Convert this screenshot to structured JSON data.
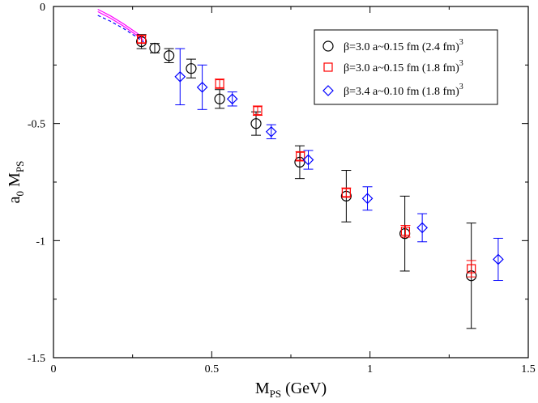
{
  "chart_data": {
    "type": "scatter",
    "xlabel": {
      "main": "M",
      "sub": "PS",
      "suffix": " (GeV)"
    },
    "ylabel": {
      "pre": "a",
      "presub": "0",
      "main": " M",
      "sub": "PS"
    },
    "xlim": [
      0,
      1.5
    ],
    "ylim": [
      -1.5,
      0
    ],
    "xticks": [
      {
        "value": 0,
        "label": "0"
      },
      {
        "value": 0.5,
        "label": "0.5"
      },
      {
        "value": 1,
        "label": "1"
      },
      {
        "value": 1.5,
        "label": "1.5"
      }
    ],
    "yticks": [
      {
        "value": 0,
        "label": "0"
      },
      {
        "value": -0.5,
        "label": "-0.5"
      },
      {
        "value": -1,
        "label": "-1"
      },
      {
        "value": -1.5,
        "label": "-1.5"
      }
    ],
    "series": [
      {
        "name": "β=3.0 a~0.15 fm (2.4 fm)",
        "legend_sup": "3",
        "marker": "circle",
        "color": "#000000",
        "points": [
          {
            "x": 0.278,
            "y": -0.15,
            "err": 0.03
          },
          {
            "x": 0.32,
            "y": -0.178,
            "err": 0.02
          },
          {
            "x": 0.365,
            "y": -0.21,
            "err": 0.03
          },
          {
            "x": 0.435,
            "y": -0.265,
            "err": 0.04
          },
          {
            "x": 0.525,
            "y": -0.395,
            "err": 0.04
          },
          {
            "x": 0.64,
            "y": -0.5,
            "err": 0.05
          },
          {
            "x": 0.778,
            "y": -0.665,
            "err": 0.07
          },
          {
            "x": 0.925,
            "y": -0.81,
            "err": 0.11
          },
          {
            "x": 1.11,
            "y": -0.97,
            "err": 0.16
          },
          {
            "x": 1.32,
            "y": -1.15,
            "err": 0.225
          }
        ]
      },
      {
        "name": "β=3.0 a~0.15 fm (1.8 fm)",
        "legend_sup": "3",
        "marker": "square",
        "color": "#ff0000",
        "points": [
          {
            "x": 0.278,
            "y": -0.14,
            "err": 0.015
          },
          {
            "x": 0.525,
            "y": -0.33,
            "err": 0.02
          },
          {
            "x": 0.645,
            "y": -0.445,
            "err": 0.02
          },
          {
            "x": 0.78,
            "y": -0.64,
            "err": 0.02
          },
          {
            "x": 0.925,
            "y": -0.795,
            "err": 0.02
          },
          {
            "x": 1.112,
            "y": -0.96,
            "err": 0.025
          },
          {
            "x": 1.32,
            "y": -1.12,
            "err": 0.035
          }
        ]
      },
      {
        "name": "β=3.4 a~0.10 fm (1.8 fm)",
        "legend_sup": "3",
        "marker": "diamond",
        "color": "#0000ff",
        "points": [
          {
            "x": 0.4,
            "y": -0.3,
            "err": 0.12
          },
          {
            "x": 0.47,
            "y": -0.345,
            "err": 0.095
          },
          {
            "x": 0.565,
            "y": -0.395,
            "err": 0.03
          },
          {
            "x": 0.688,
            "y": -0.535,
            "err": 0.03
          },
          {
            "x": 0.805,
            "y": -0.655,
            "err": 0.04
          },
          {
            "x": 0.992,
            "y": -0.82,
            "err": 0.05
          },
          {
            "x": 1.165,
            "y": -0.945,
            "err": 0.06
          },
          {
            "x": 1.405,
            "y": -1.08,
            "err": 0.09
          }
        ]
      }
    ],
    "curves": [
      {
        "name": "magenta-solid-upper",
        "color": "#ff00ff",
        "style": "solid",
        "x": [
          0.14,
          0.18,
          0.22,
          0.26,
          0.285
        ],
        "y": [
          -0.012,
          -0.04,
          -0.073,
          -0.11,
          -0.135
        ]
      },
      {
        "name": "magenta-solid-lower",
        "color": "#ff00ff",
        "style": "solid",
        "x": [
          0.14,
          0.18,
          0.22,
          0.26,
          0.285
        ],
        "y": [
          -0.022,
          -0.05,
          -0.083,
          -0.12,
          -0.145
        ]
      },
      {
        "name": "blue-dashed",
        "color": "#0000ff",
        "style": "dashed",
        "x": [
          0.14,
          0.18,
          0.22,
          0.26,
          0.285
        ],
        "y": [
          -0.038,
          -0.063,
          -0.093,
          -0.128,
          -0.152
        ]
      }
    ]
  }
}
